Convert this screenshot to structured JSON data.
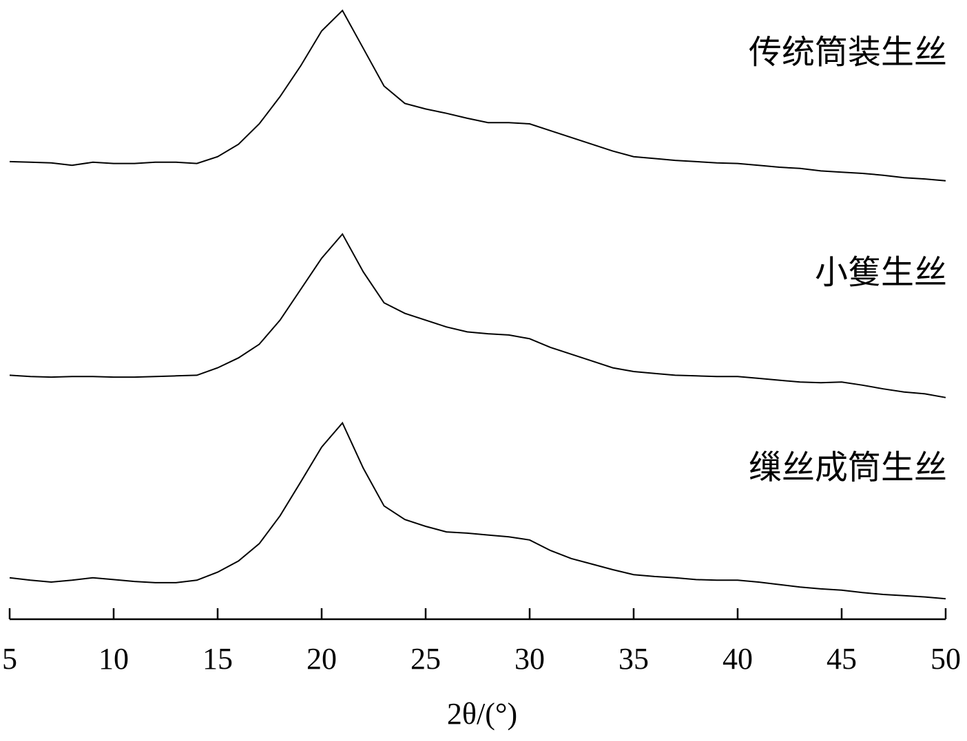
{
  "chart_data": {
    "type": "line",
    "xlabel": "2θ/(°)",
    "x": [
      5,
      6,
      7,
      8,
      9,
      10,
      11,
      12,
      13,
      14,
      15,
      16,
      17,
      18,
      19,
      20,
      21,
      22,
      23,
      24,
      25,
      26,
      27,
      28,
      29,
      30,
      31,
      32,
      33,
      34,
      35,
      36,
      37,
      38,
      39,
      40,
      41,
      42,
      43,
      44,
      45,
      46,
      47,
      48,
      49,
      50
    ],
    "xlim": [
      5,
      50
    ],
    "xticks": [
      5,
      10,
      15,
      20,
      25,
      30,
      35,
      40,
      45,
      50
    ],
    "ylim": [
      0,
      100
    ],
    "series": [
      {
        "name": "传统筒装生丝",
        "color": "#000000",
        "values": [
          73.9,
          73.8,
          73.7,
          73.3,
          73.8,
          73.6,
          73.6,
          73.8,
          73.8,
          73.6,
          74.7,
          76.7,
          80,
          84.4,
          89.4,
          95,
          98.3,
          92.2,
          86.1,
          83.3,
          82.4,
          81.7,
          80.9,
          80.2,
          80.2,
          80,
          78.9,
          77.8,
          76.7,
          75.6,
          74.7,
          74.4,
          74.1,
          73.9,
          73.7,
          73.6,
          73.3,
          73,
          72.8,
          72.4,
          72.2,
          72,
          71.7,
          71.3,
          71.1,
          70.8
        ]
      },
      {
        "name": "小篗生丝",
        "color": "#000000",
        "values": [
          39.4,
          39.2,
          39.1,
          39.2,
          39.2,
          39.1,
          39.1,
          39.2,
          39.3,
          39.4,
          40.6,
          42.2,
          44.4,
          48.3,
          53.3,
          58.3,
          62.2,
          56.1,
          51.1,
          49.4,
          48.3,
          47.2,
          46.4,
          46.1,
          45.9,
          45.3,
          43.9,
          42.8,
          41.7,
          40.6,
          40,
          39.7,
          39.4,
          39.3,
          39.2,
          39.2,
          38.9,
          38.6,
          38.3,
          38.2,
          38.3,
          37.8,
          37.2,
          36.7,
          36.4,
          35.8
        ]
      },
      {
        "name": "缫丝成筒生丝",
        "color": "#000000",
        "values": [
          6.7,
          6.3,
          6,
          6.3,
          6.7,
          6.4,
          6.1,
          5.9,
          5.9,
          6.3,
          7.6,
          9.4,
          12.2,
          16.7,
          22.2,
          27.8,
          31.7,
          24.4,
          18.3,
          16.1,
          15,
          14.1,
          13.9,
          13.6,
          13.3,
          12.8,
          11.1,
          9.8,
          8.9,
          8,
          7.2,
          6.9,
          6.7,
          6.4,
          6.3,
          6.3,
          6,
          5.6,
          5.2,
          4.9,
          4.7,
          4.3,
          4,
          3.8,
          3.6,
          3.3
        ]
      }
    ]
  }
}
